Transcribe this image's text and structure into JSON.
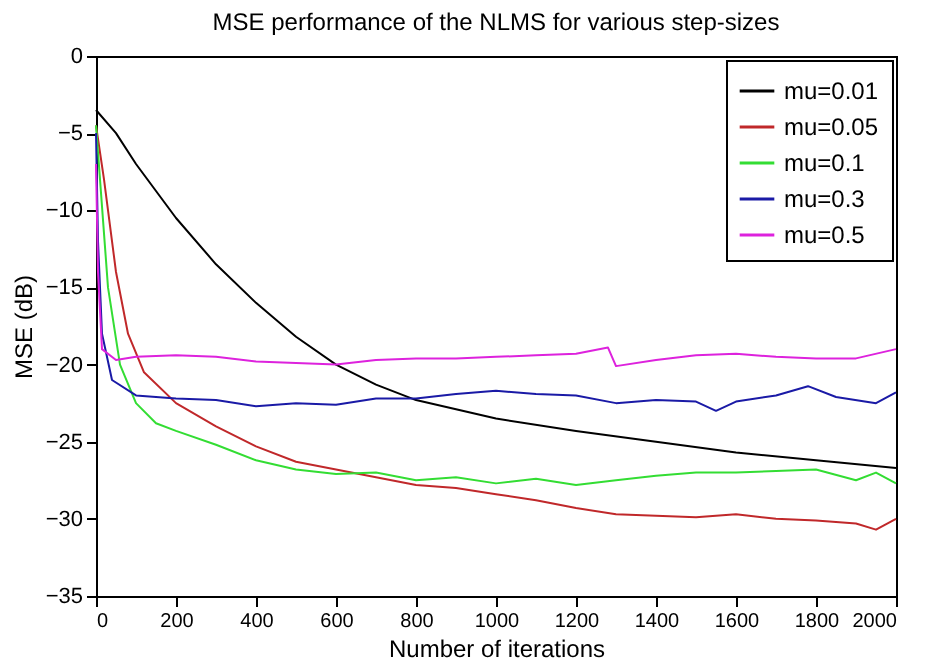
{
  "chart_data": {
    "type": "line",
    "title": "MSE performance of the NLMS for various step-sizes",
    "xlabel": "Number of iterations",
    "ylabel": "MSE (dB)",
    "xlim": [
      0,
      2000
    ],
    "xticks": [
      0,
      200,
      400,
      600,
      800,
      1000,
      1200,
      1400,
      1600,
      1800,
      2000
    ],
    "ylim": [
      -35,
      0
    ],
    "yticks": [
      -35,
      -30,
      -25,
      -20,
      -15,
      -10,
      -5,
      0
    ],
    "grid": false,
    "legend": "top right",
    "marker": "none",
    "line_style": "solid",
    "series": [
      {
        "name": "mu=0.01",
        "color": "#000000",
        "x": [
          0,
          50,
          100,
          200,
          300,
          400,
          500,
          600,
          700,
          800,
          1000,
          1200,
          1400,
          1600,
          1800,
          2000
        ],
        "values": [
          -3.5,
          -5,
          -7,
          -10.5,
          -13.5,
          -16,
          -18.2,
          -20,
          -21.3,
          -22.3,
          -23.5,
          -24.3,
          -25,
          -25.7,
          -26.2,
          -26.7
        ]
      },
      {
        "name": "mu=0.05",
        "color": "#c0282a",
        "x": [
          0,
          20,
          50,
          80,
          120,
          200,
          300,
          400,
          500,
          600,
          700,
          800,
          900,
          1000,
          1100,
          1200,
          1300,
          1400,
          1500,
          1600,
          1700,
          1800,
          1900,
          1950,
          2000
        ],
        "values": [
          -4.5,
          -8,
          -14,
          -18,
          -20.5,
          -22.5,
          -24,
          -25.3,
          -26.3,
          -26.8,
          -27.3,
          -27.8,
          -28,
          -28.4,
          -28.8,
          -29.3,
          -29.7,
          -29.8,
          -29.9,
          -29.7,
          -30,
          -30.1,
          -30.3,
          -30.7,
          -30
        ]
      },
      {
        "name": "mu=0.1",
        "color": "#33dd33",
        "x": [
          0,
          10,
          30,
          60,
          100,
          150,
          200,
          300,
          400,
          500,
          600,
          700,
          800,
          900,
          1000,
          1100,
          1200,
          1300,
          1400,
          1500,
          1600,
          1700,
          1800,
          1900,
          1950,
          2000
        ],
        "values": [
          -4.5,
          -8,
          -15,
          -20,
          -22.5,
          -23.8,
          -24.3,
          -25.2,
          -26.2,
          -26.8,
          -27.1,
          -27,
          -27.5,
          -27.3,
          -27.7,
          -27.4,
          -27.8,
          -27.5,
          -27.2,
          -27,
          -27,
          -26.9,
          -26.8,
          -27.5,
          -27,
          -27.7
        ]
      },
      {
        "name": "mu=0.3",
        "color": "#1a1aa6",
        "x": [
          0,
          5,
          15,
          40,
          100,
          200,
          300,
          400,
          500,
          600,
          700,
          800,
          900,
          1000,
          1100,
          1200,
          1300,
          1400,
          1500,
          1550,
          1600,
          1700,
          1780,
          1850,
          1950,
          2000
        ],
        "values": [
          -5,
          -12,
          -18,
          -21,
          -22,
          -22.2,
          -22.3,
          -22.7,
          -22.5,
          -22.6,
          -22.2,
          -22.2,
          -21.9,
          -21.7,
          -21.9,
          -22,
          -22.5,
          -22.3,
          -22.4,
          -23,
          -22.4,
          -22,
          -21.4,
          -22.1,
          -22.5,
          -21.8
        ]
      },
      {
        "name": "mu=0.5",
        "color": "#dd22dd",
        "x": [
          0,
          5,
          15,
          50,
          100,
          200,
          300,
          400,
          500,
          600,
          700,
          800,
          900,
          1000,
          1100,
          1200,
          1280,
          1300,
          1400,
          1500,
          1600,
          1700,
          1800,
          1900,
          2000
        ],
        "values": [
          -7,
          -14,
          -19,
          -19.7,
          -19.5,
          -19.4,
          -19.5,
          -19.8,
          -19.9,
          -20,
          -19.7,
          -19.6,
          -19.6,
          -19.5,
          -19.4,
          -19.3,
          -18.9,
          -20.1,
          -19.7,
          -19.4,
          -19.3,
          -19.5,
          -19.6,
          -19.6,
          -19
        ]
      }
    ]
  }
}
